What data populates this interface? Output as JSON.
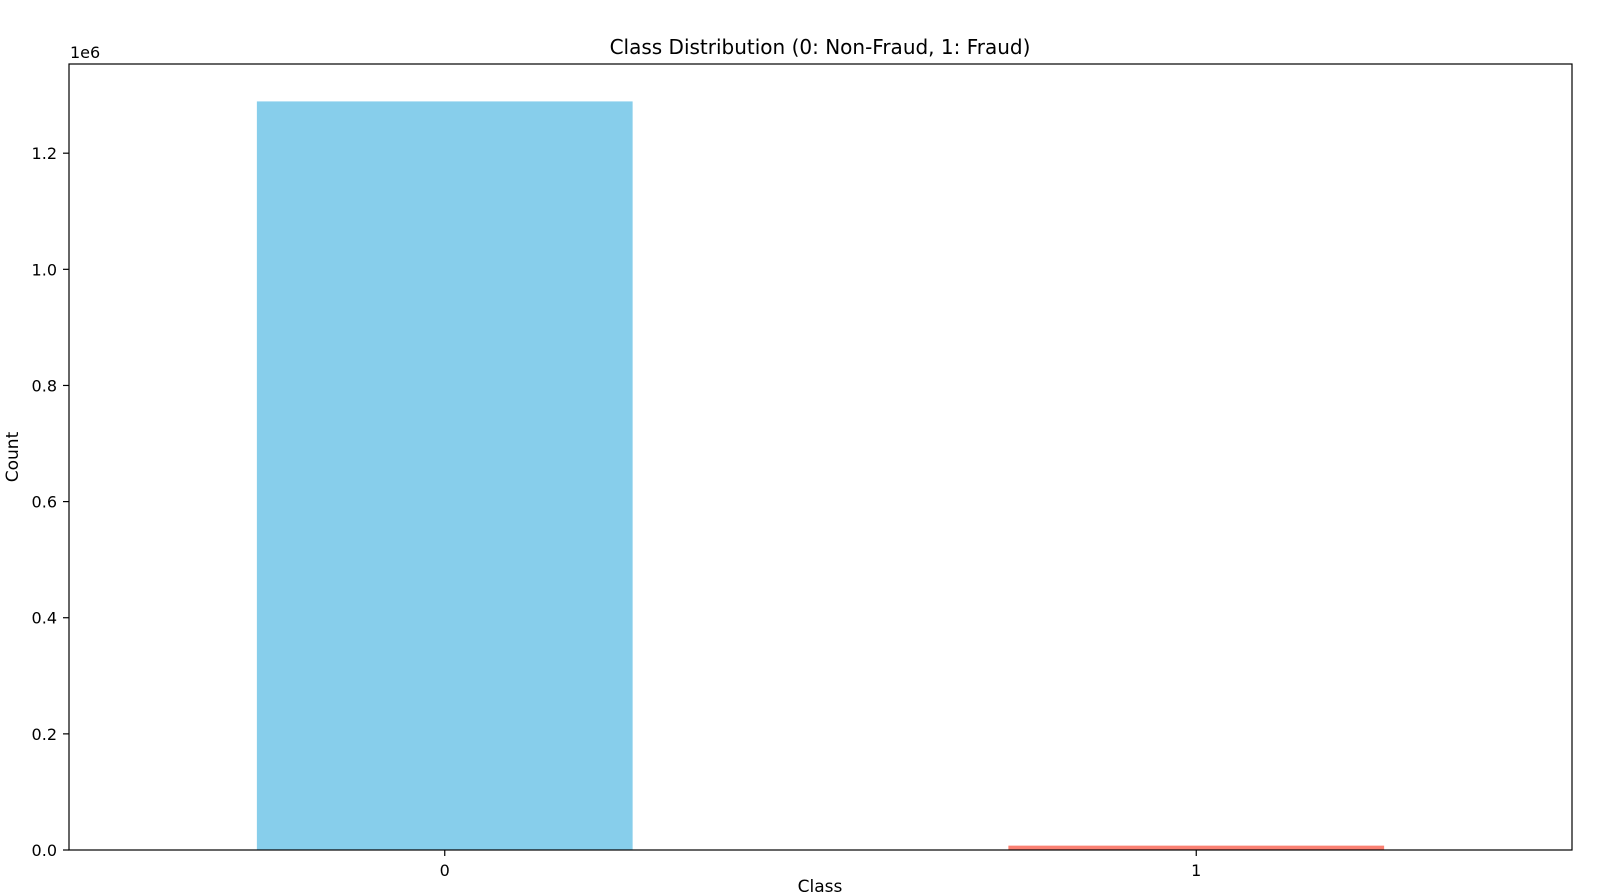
{
  "chart_data": {
    "type": "bar",
    "title": "Class Distribution (0: Non-Fraud, 1: Fraud)",
    "xlabel": "Class",
    "ylabel": "Count",
    "scale_label": "1e6",
    "categories": [
      "0",
      "1"
    ],
    "values": [
      1289169,
      7506
    ],
    "colors": [
      "#87ceeb",
      "#fa8072"
    ],
    "ylim": [
      0,
      1353600
    ],
    "yticks": [
      0,
      200000,
      400000,
      600000,
      800000,
      1000000,
      1200000
    ],
    "ytick_labels": [
      "0.0",
      "0.2",
      "0.4",
      "0.6",
      "0.8",
      "1.0",
      "1.2"
    ],
    "grid": false,
    "legend": "none"
  }
}
